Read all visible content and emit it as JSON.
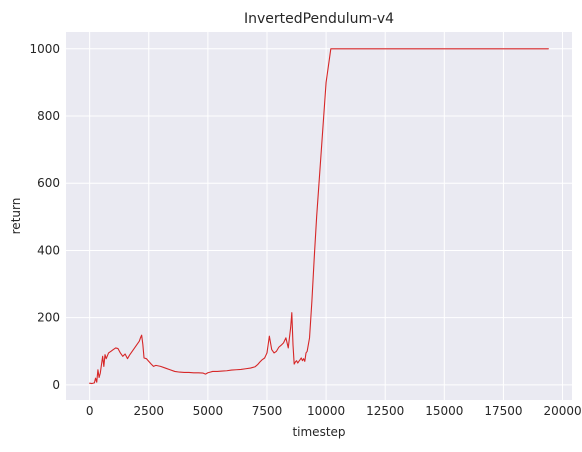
{
  "chart_data": {
    "type": "line",
    "title": "InvertedPendulum-v4",
    "xlabel": "timestep",
    "ylabel": "return",
    "xlim": [
      -1000,
      20400
    ],
    "ylim": [
      -45,
      1050
    ],
    "xticks": [
      0,
      2500,
      5000,
      7500,
      10000,
      12500,
      15000,
      17500,
      20000
    ],
    "yticks": [
      0,
      200,
      400,
      600,
      800,
      1000
    ],
    "grid": true,
    "legend": "none",
    "series": [
      {
        "color": "#d62728",
        "x": [
          0,
          100,
          200,
          250,
          300,
          350,
          400,
          450,
          500,
          550,
          600,
          650,
          700,
          800,
          900,
          1000,
          1100,
          1200,
          1300,
          1400,
          1500,
          1600,
          1700,
          1800,
          1900,
          2000,
          2100,
          2150,
          2200,
          2250,
          2300,
          2400,
          2500,
          2600,
          2700,
          2800,
          3000,
          3200,
          3400,
          3600,
          3800,
          4000,
          4200,
          4400,
          4600,
          4800,
          4900,
          5000,
          5100,
          5200,
          5400,
          5600,
          5800,
          6000,
          6200,
          6400,
          6600,
          6800,
          7000,
          7100,
          7200,
          7300,
          7400,
          7500,
          7600,
          7700,
          7800,
          7900,
          8000,
          8100,
          8200,
          8300,
          8400,
          8500,
          8550,
          8600,
          8650,
          8700,
          8750,
          8800,
          8850,
          8900,
          8950,
          9000,
          9050,
          9100,
          9150,
          9200,
          9300,
          9400,
          9500,
          9600,
          9800,
          10000,
          10200,
          10400,
          10600,
          11000,
          12000,
          13000,
          14000,
          15000,
          16000,
          17000,
          18000,
          19000,
          19400
        ],
        "y": [
          5,
          4,
          6,
          20,
          8,
          45,
          22,
          35,
          60,
          85,
          55,
          90,
          78,
          95,
          100,
          105,
          110,
          108,
          95,
          85,
          92,
          78,
          90,
          100,
          110,
          120,
          130,
          140,
          148,
          120,
          80,
          78,
          70,
          62,
          55,
          58,
          55,
          50,
          45,
          40,
          38,
          37,
          37,
          36,
          36,
          35,
          32,
          36,
          38,
          40,
          40,
          41,
          42,
          44,
          45,
          46,
          48,
          50,
          54,
          60,
          68,
          75,
          80,
          95,
          145,
          105,
          95,
          100,
          112,
          118,
          125,
          140,
          110,
          170,
          215,
          120,
          62,
          68,
          72,
          65,
          70,
          75,
          80,
          72,
          78,
          70,
          95,
          100,
          140,
          250,
          380,
          500,
          700,
          900,
          1000,
          1000,
          1000,
          1000,
          1000,
          1000,
          1000,
          1000,
          1000,
          1000,
          1000,
          1000,
          1000
        ]
      }
    ]
  }
}
